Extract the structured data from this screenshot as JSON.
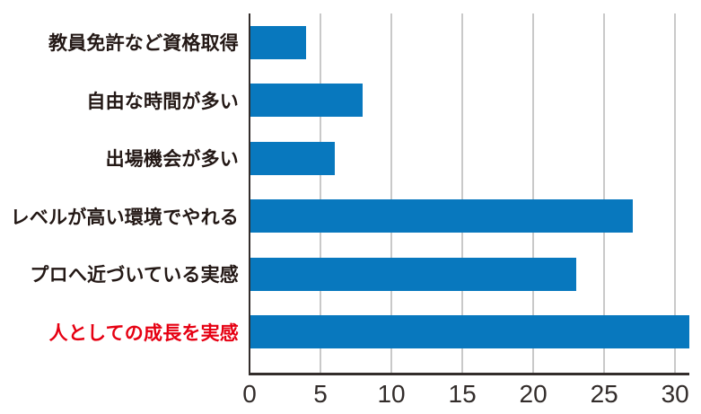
{
  "chart_data": {
    "type": "bar",
    "orientation": "horizontal",
    "title": "",
    "xlabel": "",
    "ylabel": "",
    "categories": [
      "教員免許など資格取得",
      "自由な時間が多い",
      "出場機会が多い",
      "レベルが高い環境でやれる",
      "プロへ近づいている実感",
      "人としての成長を実感"
    ],
    "values": [
      4,
      8,
      6,
      27,
      23,
      31
    ],
    "highlight_index": 5,
    "xlim": [
      0,
      31
    ],
    "x_ticks": [
      0,
      5,
      10,
      15,
      20,
      25,
      30
    ],
    "grid": true,
    "legend": "none"
  },
  "colors": {
    "bar": "#0878be",
    "label": "#231815",
    "highlight_label": "#e60012",
    "axis": "#332d2b",
    "grid": "#c9c9c9",
    "background": "#ffffff"
  }
}
